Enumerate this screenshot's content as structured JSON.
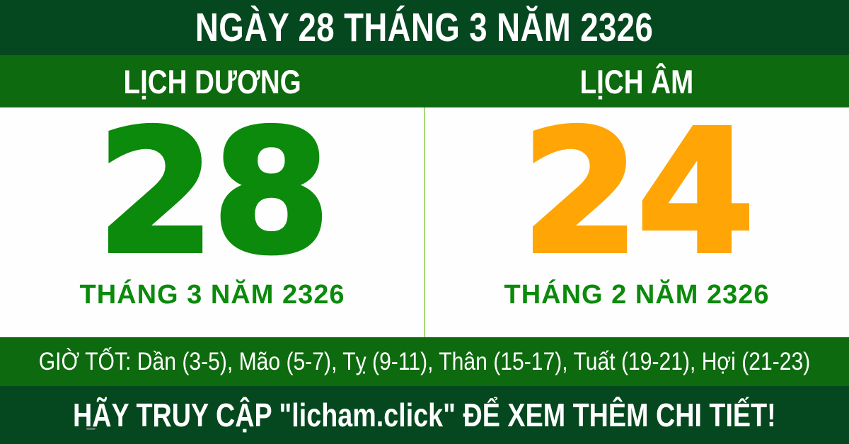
{
  "colors": {
    "dark_green": "#05481f",
    "band_green": "#0e6a0e",
    "day_green": "#0b8a0b",
    "lunar_orange": "#ffa505",
    "divider_green": "#a8d878",
    "text_white": "#ffffff"
  },
  "header": {
    "title": "NGÀY 28 THÁNG 3 NĂM 2326"
  },
  "calendars": {
    "solar": {
      "label": "LỊCH DƯƠNG",
      "day": "28",
      "month_year": "THÁNG 3 NĂM 2326"
    },
    "lunar": {
      "label": "LỊCH ÂM",
      "day": "24",
      "month_year": "THÁNG 2 NĂM 2326"
    }
  },
  "good_hours": {
    "text": "GIỜ TỐT: Dần (3-5), Mão (5-7), Tỵ (9-11), Thân (15-17), Tuất (19-21), Hợi (21-23)"
  },
  "footer": {
    "text": "HÃY TRUY CẬP \"licham.click\" ĐỂ XEM THÊM CHI TIẾT!"
  }
}
